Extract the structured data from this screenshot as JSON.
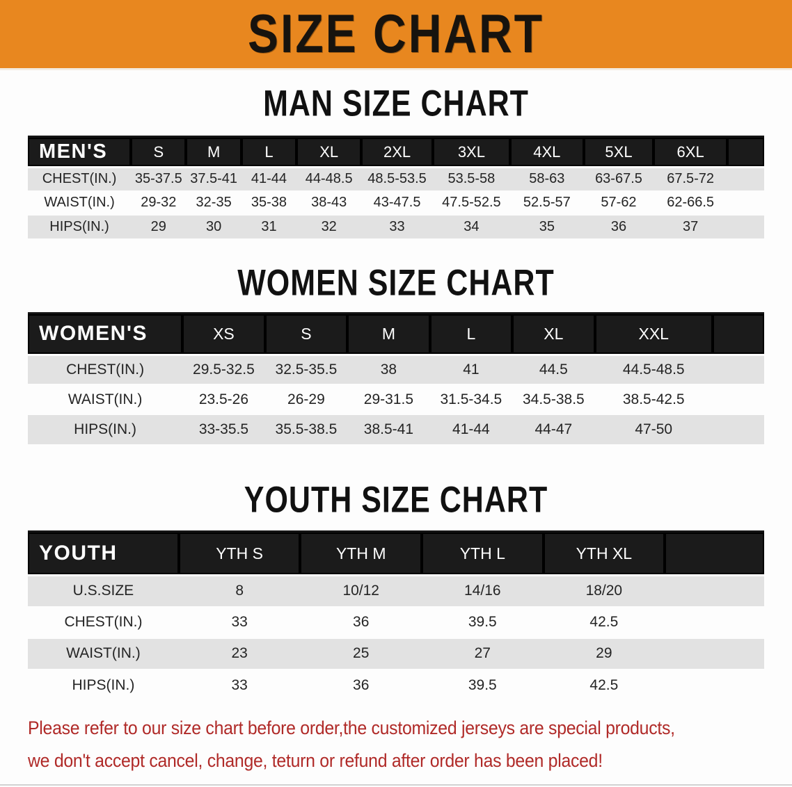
{
  "banner": {
    "title": "SIZE CHART",
    "bg_color": "#E8871F",
    "text_color": "#17130E"
  },
  "sections": [
    {
      "title": "MAN SIZE CHART",
      "table": {
        "header": {
          "label": "MEN'S",
          "columns": [
            "S",
            "M",
            "L",
            "XL",
            "2XL",
            "3XL",
            "4XL",
            "5XL",
            "6XL"
          ]
        },
        "rows": [
          {
            "label": "CHEST(IN.)",
            "values": [
              "35-37.5",
              "37.5-41",
              "41-44",
              "44-48.5",
              "48.5-53.5",
              "53.5-58",
              "58-63",
              "63-67.5",
              "67.5-72"
            ]
          },
          {
            "label": "WAIST(IN.)",
            "values": [
              "29-32",
              "32-35",
              "35-38",
              "38-43",
              "43-47.5",
              "47.5-52.5",
              "52.5-57",
              "57-62",
              "62-66.5"
            ]
          },
          {
            "label": "HIPS(IN.)",
            "values": [
              "29",
              "30",
              "31",
              "32",
              "33",
              "34",
              "35",
              "36",
              "37"
            ]
          }
        ]
      }
    },
    {
      "title": "WOMEN SIZE CHART",
      "table": {
        "header": {
          "label": "WOMEN'S",
          "columns": [
            "XS",
            "S",
            "M",
            "L",
            "XL",
            "XXL"
          ]
        },
        "rows": [
          {
            "label": "CHEST(IN.)",
            "values": [
              "29.5-32.5",
              "32.5-35.5",
              "38",
              "41",
              "44.5",
              "44.5-48.5"
            ]
          },
          {
            "label": "WAIST(IN.)",
            "values": [
              "23.5-26",
              "26-29",
              "29-31.5",
              "31.5-34.5",
              "34.5-38.5",
              "38.5-42.5"
            ]
          },
          {
            "label": "HIPS(IN.)",
            "values": [
              "33-35.5",
              "35.5-38.5",
              "38.5-41",
              "41-44",
              "44-47",
              "47-50"
            ]
          }
        ]
      }
    },
    {
      "title": "YOUTH SIZE CHART",
      "table": {
        "header": {
          "label": "YOUTH",
          "columns": [
            "YTH S",
            "YTH M",
            "YTH L",
            "YTH XL"
          ]
        },
        "rows": [
          {
            "label": "U.S.SIZE",
            "values": [
              "8",
              "10/12",
              "14/16",
              "18/20"
            ]
          },
          {
            "label": "CHEST(IN.)",
            "values": [
              "33",
              "36",
              "39.5",
              "42.5"
            ]
          },
          {
            "label": "WAIST(IN.)",
            "values": [
              "23",
              "25",
              "27",
              "29"
            ]
          },
          {
            "label": "HIPS(IN.)",
            "values": [
              "33",
              "36",
              "39.5",
              "42.5"
            ]
          }
        ]
      }
    }
  ],
  "footer": {
    "line1": "Please refer to our size chart before order,the customized jerseys are special products,",
    "line2": "we don't accept cancel, change, teturn or refund after order has been placed!",
    "text_color": "#B02A28"
  },
  "colors": {
    "header_bar": "#1B1B1B",
    "row_shade": "#E2E2E2",
    "table_text": "#242424"
  }
}
